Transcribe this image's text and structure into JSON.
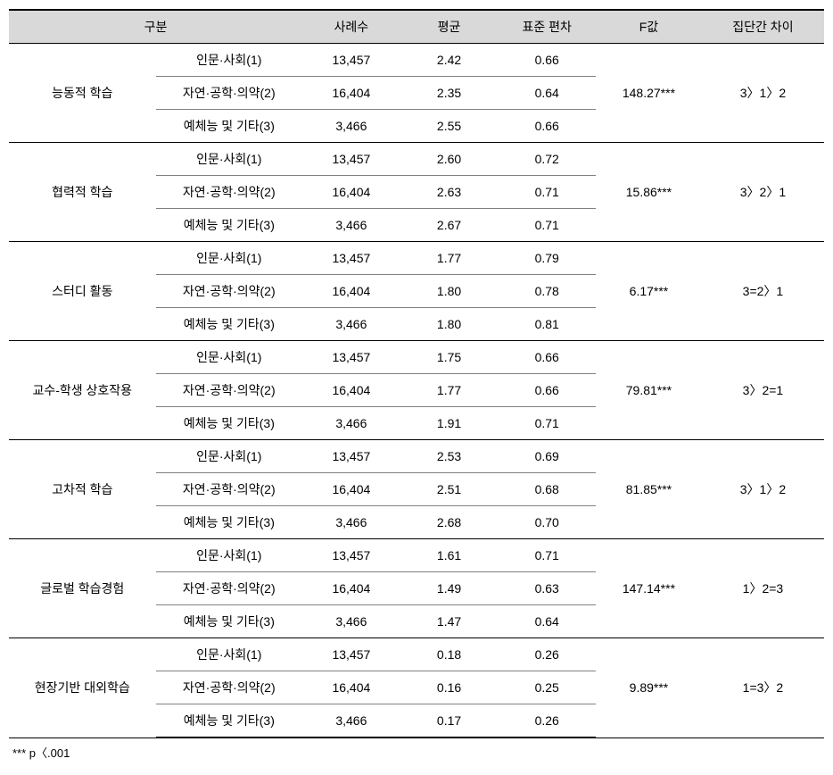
{
  "table": {
    "columns": {
      "category": "구분",
      "cases": "사례수",
      "mean": "평균",
      "stddev": "표준 편차",
      "fvalue": "F값",
      "groupdiff": "집단간 차이"
    },
    "subgroup_labels": [
      "인문·사회(1)",
      "자연·공학·의약(2)",
      "예체능 및 기타(3)"
    ],
    "subgroup_cases": [
      "13,457",
      "16,404",
      "3,466"
    ],
    "groups": [
      {
        "category": "능동적 학습",
        "rows": [
          {
            "mean": "2.42",
            "stddev": "0.66"
          },
          {
            "mean": "2.35",
            "stddev": "0.64"
          },
          {
            "mean": "2.55",
            "stddev": "0.66"
          }
        ],
        "fvalue": "148.27***",
        "groupdiff": "3〉1〉2"
      },
      {
        "category": "협력적 학습",
        "rows": [
          {
            "mean": "2.60",
            "stddev": "0.72"
          },
          {
            "mean": "2.63",
            "stddev": "0.71"
          },
          {
            "mean": "2.67",
            "stddev": "0.71"
          }
        ],
        "fvalue": "15.86***",
        "groupdiff": "3〉2〉1"
      },
      {
        "category": "스터디 활동",
        "rows": [
          {
            "mean": "1.77",
            "stddev": "0.79"
          },
          {
            "mean": "1.80",
            "stddev": "0.78"
          },
          {
            "mean": "1.80",
            "stddev": "0.81"
          }
        ],
        "fvalue": "6.17***",
        "groupdiff": "3=2〉1"
      },
      {
        "category": "교수-학생 상호작용",
        "rows": [
          {
            "mean": "1.75",
            "stddev": "0.66"
          },
          {
            "mean": "1.77",
            "stddev": "0.66"
          },
          {
            "mean": "1.91",
            "stddev": "0.71"
          }
        ],
        "fvalue": "79.81***",
        "groupdiff": "3〉2=1"
      },
      {
        "category": "고차적 학습",
        "rows": [
          {
            "mean": "2.53",
            "stddev": "0.69"
          },
          {
            "mean": "2.51",
            "stddev": "0.68"
          },
          {
            "mean": "2.68",
            "stddev": "0.70"
          }
        ],
        "fvalue": "81.85***",
        "groupdiff": "3〉1〉2"
      },
      {
        "category": "글로벌 학습경험",
        "rows": [
          {
            "mean": "1.61",
            "stddev": "0.71"
          },
          {
            "mean": "1.49",
            "stddev": "0.63"
          },
          {
            "mean": "1.47",
            "stddev": "0.64"
          }
        ],
        "fvalue": "147.14***",
        "groupdiff": "1〉2=3"
      },
      {
        "category": "현장기반 대외학습",
        "rows": [
          {
            "mean": "0.18",
            "stddev": "0.26"
          },
          {
            "mean": "0.16",
            "stddev": "0.25"
          },
          {
            "mean": "0.17",
            "stddev": "0.26"
          }
        ],
        "fvalue": "9.89***",
        "groupdiff": "1=3〉2"
      }
    ],
    "footnote": "*** p〈.001"
  },
  "styling": {
    "header_bg": "#d9d9d9",
    "border_dark": "#000000",
    "border_light": "#808080",
    "font_size": 14,
    "footnote_font_size": 13
  }
}
